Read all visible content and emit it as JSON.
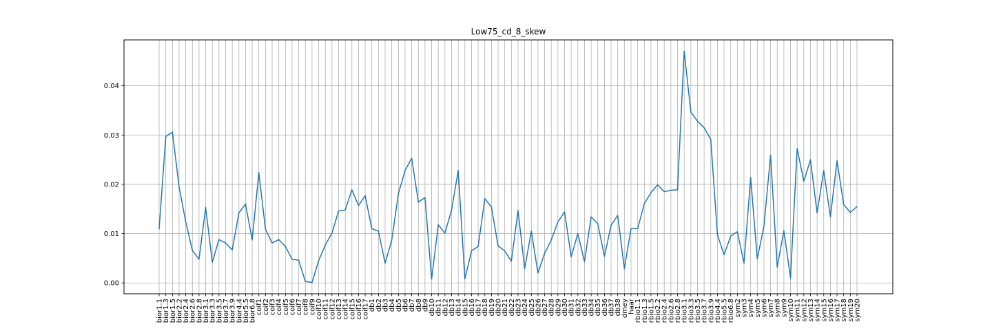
{
  "chart_data": {
    "type": "line",
    "title": "Low75_cd_8_skew",
    "xlabel": "",
    "ylabel": "",
    "ylim": [
      -0.0022,
      0.0493
    ],
    "yticks": [
      0.0,
      0.01,
      0.02,
      0.03,
      0.04
    ],
    "ytick_labels": [
      "0.00",
      "0.01",
      "0.02",
      "0.03",
      "0.04"
    ],
    "grid": true,
    "line_color": "#1f77b4",
    "categories": [
      "bior1.1",
      "bior1.3",
      "bior1.5",
      "bior2.2",
      "bior2.4",
      "bior2.6",
      "bior2.8",
      "bior3.1",
      "bior3.3",
      "bior3.5",
      "bior3.7",
      "bior3.9",
      "bior4.4",
      "bior5.5",
      "bior6.8",
      "coif1",
      "coif2",
      "coif3",
      "coif4",
      "coif5",
      "coif6",
      "coif7",
      "coif8",
      "coif9",
      "coif10",
      "coif11",
      "coif12",
      "coif13",
      "coif14",
      "coif15",
      "coif16",
      "coif17",
      "db1",
      "db2",
      "db3",
      "db4",
      "db5",
      "db6",
      "db7",
      "db8",
      "db9",
      "db10",
      "db11",
      "db12",
      "db13",
      "db14",
      "db15",
      "db16",
      "db17",
      "db18",
      "db19",
      "db20",
      "db21",
      "db22",
      "db23",
      "db24",
      "db25",
      "db26",
      "db27",
      "db28",
      "db29",
      "db30",
      "db31",
      "db32",
      "db33",
      "db34",
      "db35",
      "db36",
      "db37",
      "db38",
      "dmey",
      "haar",
      "rbio1.1",
      "rbio1.3",
      "rbio1.5",
      "rbio2.2",
      "rbio2.4",
      "rbio2.6",
      "rbio2.8",
      "rbio3.1",
      "rbio3.3",
      "rbio3.5",
      "rbio3.7",
      "rbio3.9",
      "rbio4.4",
      "rbio5.5",
      "rbio6.8",
      "sym2",
      "sym3",
      "sym4",
      "sym5",
      "sym6",
      "sym7",
      "sym8",
      "sym9",
      "sym10",
      "sym11",
      "sym12",
      "sym13",
      "sym14",
      "sym15",
      "sym16",
      "sym17",
      "sym18",
      "sym19",
      "sym20"
    ],
    "values": [
      0.011,
      0.0297,
      0.0306,
      0.0195,
      0.0124,
      0.0066,
      0.0048,
      0.0153,
      0.0042,
      0.0088,
      0.0081,
      0.0067,
      0.0142,
      0.016,
      0.0087,
      0.0224,
      0.0109,
      0.0081,
      0.0088,
      0.0074,
      0.0048,
      0.0046,
      0.0003,
      0.0001,
      0.0045,
      0.0077,
      0.0101,
      0.0146,
      0.0148,
      0.0189,
      0.0157,
      0.0177,
      0.011,
      0.0105,
      0.004,
      0.0087,
      0.0181,
      0.0228,
      0.0253,
      0.0164,
      0.0173,
      0.0008,
      0.0118,
      0.0101,
      0.0148,
      0.0228,
      0.0008,
      0.0065,
      0.0074,
      0.0171,
      0.0154,
      0.0075,
      0.0065,
      0.0044,
      0.0147,
      0.0029,
      0.0105,
      0.002,
      0.006,
      0.0087,
      0.0124,
      0.0144,
      0.0053,
      0.01,
      0.0043,
      0.0134,
      0.012,
      0.0054,
      0.0117,
      0.0137,
      0.0029,
      0.011,
      0.011,
      0.0161,
      0.0183,
      0.0199,
      0.0185,
      0.0188,
      0.0189,
      0.047,
      0.0347,
      0.0328,
      0.0315,
      0.0291,
      0.0098,
      0.0057,
      0.0095,
      0.0104,
      0.004,
      0.0214,
      0.0049,
      0.0115,
      0.0259,
      0.0032,
      0.0106,
      0.001,
      0.0273,
      0.0206,
      0.025,
      0.0142,
      0.0228,
      0.0134,
      0.0248,
      0.0159,
      0.0143,
      0.0155
    ]
  }
}
